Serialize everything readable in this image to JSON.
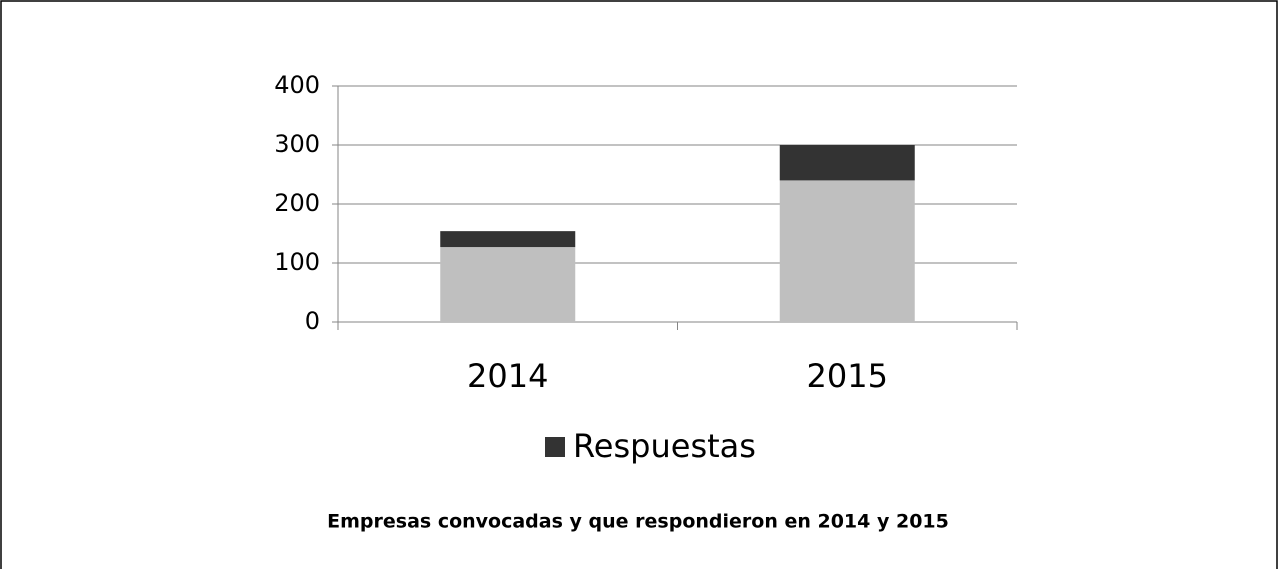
{
  "chart_data": {
    "type": "bar",
    "stacked": true,
    "title": "Empresas convocadas y que respondieron en 2014 y 2015",
    "categories": [
      "2014",
      "2015"
    ],
    "series": [
      {
        "color": "#bfbfbf",
        "values": [
          127,
          240
        ]
      },
      {
        "name": "Respuestas",
        "color": "#333333",
        "values": [
          27,
          60
        ]
      }
    ],
    "ylim": [
      0,
      400
    ],
    "yticks": [
      0,
      100,
      200,
      300,
      400
    ],
    "grid": true,
    "legend": "bottom"
  }
}
